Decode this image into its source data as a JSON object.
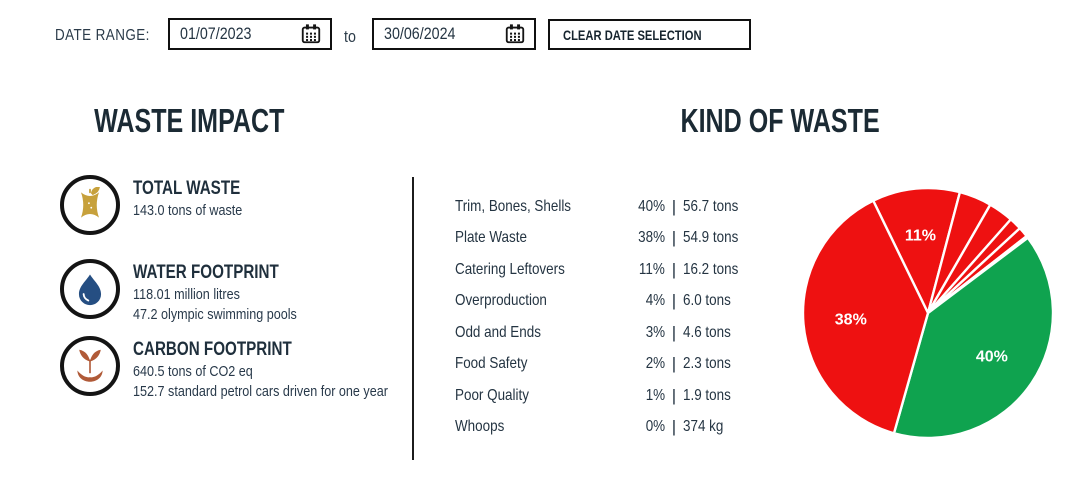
{
  "date_range": {
    "label": "DATE RANGE:",
    "start_value": "01/07/2023",
    "to_label": "to",
    "end_value": "30/06/2024",
    "clear_button_label": "CLEAR DATE SELECTION",
    "calendar_icon": "calendar-icon"
  },
  "waste_impact": {
    "title": "WASTE IMPACT",
    "metrics": [
      {
        "icon": "apple-core-icon",
        "icon_color": "#c7a13c",
        "title": "TOTAL WASTE",
        "lines": [
          "143.0 tons of waste"
        ]
      },
      {
        "icon": "water-drop-icon",
        "icon_color": "#254e82",
        "title": "WATER FOOTPRINT",
        "lines": [
          "118.01 million litres",
          "47.2 olympic swimming pools"
        ]
      },
      {
        "icon": "sprout-hand-icon",
        "icon_color": "#b05a38",
        "title": "CARBON FOOTPRINT",
        "lines": [
          "640.5 tons of CO2 eq",
          "152.7 standard petrol cars driven for one year"
        ]
      }
    ]
  },
  "kind_of_waste": {
    "title": "KIND OF WASTE",
    "separator": "|",
    "rows": [
      {
        "label": "Trim, Bones, Shells",
        "pct": "40%",
        "amount": "56.7 tons"
      },
      {
        "label": "Plate Waste",
        "pct": "38%",
        "amount": "54.9 tons"
      },
      {
        "label": "Catering Leftovers",
        "pct": "11%",
        "amount": "16.2 tons"
      },
      {
        "label": "Overproduction",
        "pct": "4%",
        "amount": "6.0 tons"
      },
      {
        "label": "Odd and Ends",
        "pct": "3%",
        "amount": "4.6 tons"
      },
      {
        "label": "Food Safety",
        "pct": "2%",
        "amount": "2.3 tons"
      },
      {
        "label": "Poor Quality",
        "pct": "1%",
        "amount": "1.9 tons"
      },
      {
        "label": "Whoops",
        "pct": "0%",
        "amount": "374 kg"
      }
    ]
  },
  "chart_data": {
    "type": "pie",
    "title": "KIND OF WASTE",
    "legend_position": "none",
    "direction": "clockwise",
    "start_angle_deg": -26,
    "label_color": "#ffffff",
    "label_radius_fraction": 0.62,
    "colors": {
      "red": "#ee1111",
      "green": "#0fa34f"
    },
    "slices": [
      {
        "name": "Catering Leftovers",
        "pct": 11.33,
        "amount": "16.2 tons",
        "color": "red",
        "label": "11%"
      },
      {
        "name": "Overproduction",
        "pct": 4.2,
        "amount": "6.0 tons",
        "color": "red"
      },
      {
        "name": "Odd and Ends",
        "pct": 3.22,
        "amount": "4.6 tons",
        "color": "red"
      },
      {
        "name": "Food Safety",
        "pct": 1.61,
        "amount": "2.3 tons",
        "color": "red"
      },
      {
        "name": "Poor Quality",
        "pct": 1.33,
        "amount": "1.9 tons",
        "color": "red"
      },
      {
        "name": "Whoops",
        "pct": 0.26,
        "amount": "374 kg",
        "color": "red"
      },
      {
        "name": "Trim, Bones, Shells",
        "pct": 39.66,
        "amount": "56.7 tons",
        "color": "green",
        "label": "40%"
      },
      {
        "name": "Plate Waste",
        "pct": 38.39,
        "amount": "54.9 tons",
        "color": "red",
        "label": "38%"
      }
    ]
  }
}
